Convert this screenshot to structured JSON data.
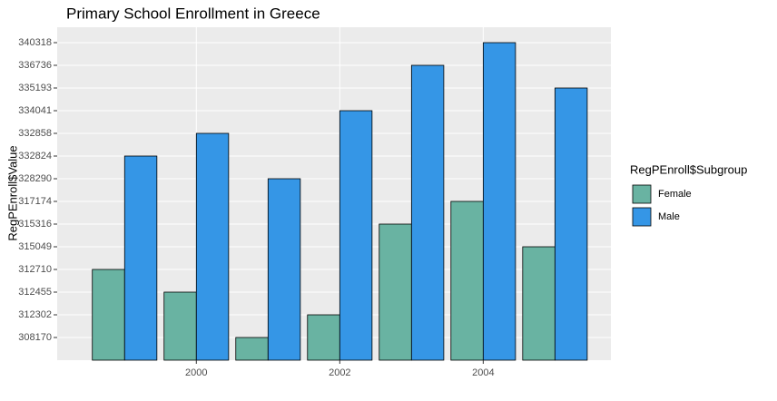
{
  "chart_data": {
    "type": "bar",
    "title": "Primary School Enrollment in Greece",
    "x_label": "",
    "y_label": "RegPEnroll$Value",
    "legend_title": "RegPEnroll$Subgroup",
    "x": [
      1999,
      2000,
      2001,
      2002,
      2003,
      2004,
      2005
    ],
    "xlim": [
      1998.06,
      2005.78
    ],
    "xticks": [
      2000,
      2002,
      2004
    ],
    "y_scale": "discrete",
    "yticks": [
      308170,
      312302,
      312455,
      312710,
      315049,
      315316,
      317174,
      328290,
      332824,
      332858,
      334041,
      335193,
      336736,
      340318
    ],
    "grid": true,
    "legend": "right",
    "series": [
      {
        "name": "Female",
        "color": "#69b3a2",
        "values": [
          312710,
          312455,
          308170,
          312302,
          315316,
          317174,
          315049
        ]
      },
      {
        "name": "Male",
        "color": "#3596e6",
        "values": [
          332824,
          332858,
          328290,
          334041,
          336736,
          340318,
          335193
        ]
      }
    ]
  }
}
